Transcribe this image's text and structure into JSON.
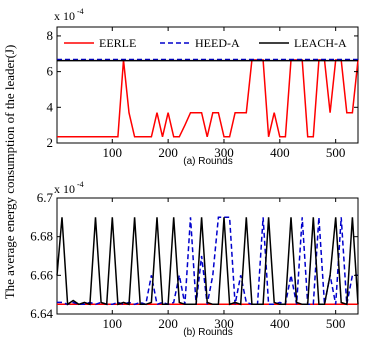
{
  "ylabel": "The average energy consumption of the leader(J)",
  "chart_data": [
    {
      "type": "line",
      "caption": "(a)  Rounds",
      "multiplier_base": "x 10",
      "multiplier_exp": "-4",
      "xlim": [
        1,
        540
      ],
      "ylim": [
        2,
        8.5
      ],
      "xticks": [
        100,
        200,
        300,
        400,
        500
      ],
      "yticks": [
        2,
        4,
        6,
        8
      ],
      "grid": false,
      "legend_position": "top",
      "x": [
        1,
        10,
        20,
        30,
        40,
        50,
        60,
        70,
        80,
        90,
        100,
        110,
        120,
        130,
        140,
        150,
        160,
        170,
        180,
        190,
        200,
        210,
        220,
        230,
        240,
        250,
        260,
        270,
        280,
        290,
        300,
        310,
        320,
        330,
        340,
        350,
        360,
        370,
        380,
        390,
        400,
        410,
        420,
        430,
        440,
        450,
        460,
        470,
        480,
        490,
        500,
        510,
        520,
        530,
        540
      ],
      "series": [
        {
          "name": "EERLE",
          "color": "#ff0000",
          "dash": "solid",
          "values": [
            2.35,
            2.35,
            2.35,
            2.35,
            2.35,
            2.35,
            2.35,
            2.35,
            2.35,
            2.35,
            2.35,
            2.35,
            6.65,
            3.7,
            2.35,
            2.35,
            2.35,
            2.35,
            3.7,
            2.35,
            3.7,
            2.35,
            2.35,
            3.0,
            3.7,
            3.7,
            3.7,
            2.35,
            3.7,
            3.7,
            2.35,
            2.35,
            3.7,
            3.7,
            3.7,
            6.65,
            6.65,
            6.65,
            2.35,
            3.7,
            2.35,
            2.35,
            6.65,
            6.65,
            6.65,
            2.35,
            2.35,
            6.65,
            6.65,
            3.7,
            6.65,
            6.65,
            3.7,
            3.7,
            6.65
          ]
        },
        {
          "name": "HEED-A",
          "color": "#0000cc",
          "dash": "dashed",
          "values": [
            6.68,
            6.68,
            6.68,
            6.68,
            6.68,
            6.68,
            6.68,
            6.68,
            6.68,
            6.68,
            6.68,
            6.68,
            6.68,
            6.68,
            6.68,
            6.68,
            6.68,
            6.68,
            6.68,
            6.68,
            6.68,
            6.68,
            6.68,
            6.68,
            6.68,
            6.68,
            6.68,
            6.68,
            6.68,
            6.68,
            6.68,
            6.68,
            6.68,
            6.68,
            6.68,
            6.68,
            6.68,
            6.68,
            6.68,
            6.68,
            6.68,
            6.68,
            6.68,
            6.68,
            6.68,
            6.68,
            6.68,
            6.68,
            6.68,
            6.68,
            6.68,
            6.68,
            6.68,
            6.68,
            6.68
          ]
        },
        {
          "name": "LEACH-A",
          "color": "#000000",
          "dash": "solid",
          "values": [
            6.62,
            6.62,
            6.62,
            6.62,
            6.62,
            6.62,
            6.62,
            6.62,
            6.62,
            6.62,
            6.62,
            6.62,
            6.62,
            6.62,
            6.62,
            6.62,
            6.62,
            6.62,
            6.62,
            6.62,
            6.62,
            6.62,
            6.62,
            6.62,
            6.62,
            6.62,
            6.62,
            6.62,
            6.62,
            6.62,
            6.62,
            6.62,
            6.62,
            6.62,
            6.62,
            6.62,
            6.62,
            6.62,
            6.62,
            6.62,
            6.62,
            6.62,
            6.62,
            6.62,
            6.62,
            6.62,
            6.62,
            6.62,
            6.62,
            6.62,
            6.62,
            6.62,
            6.62,
            6.62,
            6.62
          ]
        }
      ]
    },
    {
      "type": "line",
      "caption": "(b)  Rounds",
      "multiplier_base": "x 10",
      "multiplier_exp": "-4",
      "xlim": [
        1,
        540
      ],
      "ylim": [
        6.64,
        6.7
      ],
      "xticks": [
        100,
        200,
        300,
        400,
        500
      ],
      "yticks": [
        6.64,
        6.66,
        6.68,
        6.7
      ],
      "ytick_labels": [
        "6.64",
        "6.66",
        "6.68",
        "6.7"
      ],
      "grid": false,
      "x": [
        1,
        10,
        20,
        30,
        40,
        50,
        60,
        70,
        80,
        90,
        100,
        110,
        120,
        130,
        140,
        150,
        160,
        170,
        180,
        190,
        200,
        210,
        220,
        230,
        240,
        250,
        260,
        270,
        280,
        290,
        300,
        310,
        320,
        330,
        340,
        350,
        360,
        370,
        380,
        390,
        400,
        410,
        420,
        430,
        440,
        450,
        460,
        470,
        480,
        490,
        500,
        510,
        520,
        530,
        540
      ],
      "series": [
        {
          "name": "EERLE",
          "color": "#ff0000",
          "dash": "solid",
          "values": [
            6.645,
            6.645,
            6.645,
            6.645,
            6.645,
            6.645,
            6.645,
            6.645,
            6.645,
            6.645,
            6.645,
            6.645,
            6.645,
            6.645,
            6.645,
            6.645,
            6.645,
            6.645,
            6.645,
            6.645,
            6.645,
            6.645,
            6.645,
            6.645,
            6.645,
            6.645,
            6.645,
            6.645,
            6.645,
            6.645,
            6.645,
            6.645,
            6.645,
            6.645,
            6.645,
            6.645,
            6.645,
            6.645,
            6.645,
            6.645,
            6.645,
            6.645,
            6.645,
            6.645,
            6.645,
            6.645,
            6.645,
            6.645,
            6.645,
            6.645,
            6.645,
            6.645,
            6.645,
            6.645,
            6.645
          ]
        },
        {
          "name": "HEED-A",
          "color": "#0000cc",
          "dash": "dashed",
          "values": [
            6.646,
            6.646,
            6.645,
            6.646,
            6.645,
            6.645,
            6.646,
            6.645,
            6.646,
            6.645,
            6.645,
            6.646,
            6.645,
            6.646,
            6.645,
            6.646,
            6.645,
            6.66,
            6.645,
            6.646,
            6.645,
            6.646,
            6.66,
            6.645,
            6.69,
            6.645,
            6.67,
            6.645,
            6.66,
            6.69,
            6.69,
            6.69,
            6.645,
            6.66,
            6.646,
            6.645,
            6.645,
            6.69,
            6.645,
            6.645,
            6.646,
            6.645,
            6.66,
            6.645,
            6.69,
            6.645,
            6.645,
            6.69,
            6.645,
            6.66,
            6.645,
            6.69,
            6.645,
            6.66,
            6.66
          ]
        },
        {
          "name": "LEACH-A",
          "color": "#000000",
          "dash": "solid",
          "values": [
            6.66,
            6.69,
            6.645,
            6.647,
            6.645,
            6.646,
            6.645,
            6.69,
            6.646,
            6.645,
            6.69,
            6.645,
            6.646,
            6.645,
            6.69,
            6.645,
            6.645,
            6.646,
            6.69,
            6.645,
            6.645,
            6.69,
            6.646,
            6.645,
            6.645,
            6.645,
            6.69,
            6.646,
            6.645,
            6.645,
            6.69,
            6.645,
            6.646,
            6.645,
            6.69,
            6.645,
            6.645,
            6.645,
            6.69,
            6.646,
            6.645,
            6.645,
            6.69,
            6.646,
            6.645,
            6.645,
            6.69,
            6.645,
            6.645,
            6.66,
            6.69,
            6.646,
            6.645,
            6.69,
            6.645
          ]
        }
      ]
    }
  ]
}
